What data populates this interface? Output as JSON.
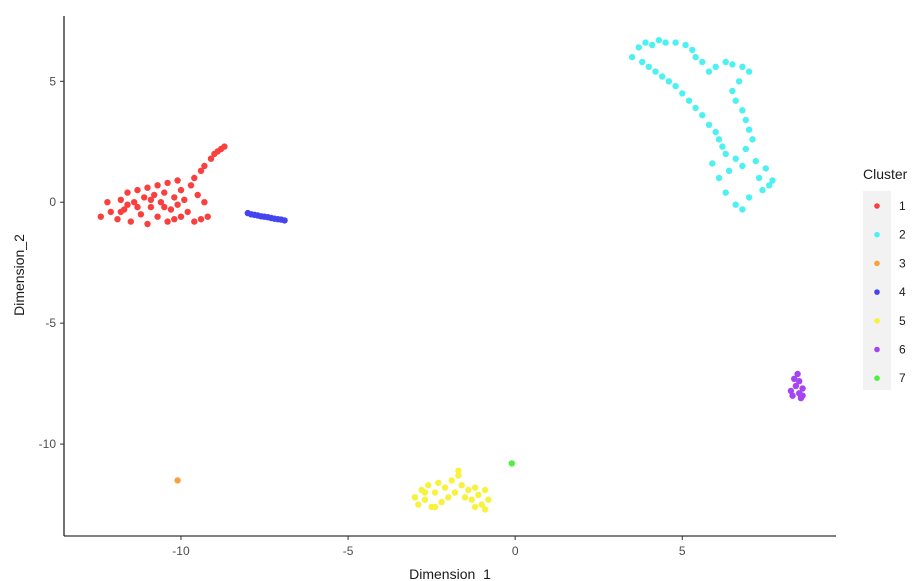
{
  "chart_data": {
    "type": "scatter",
    "xlabel": "Dimension_1",
    "ylabel": "Dimension_2",
    "xlim": [
      -13.5,
      9.6
    ],
    "ylim": [
      -13.8,
      7.7
    ],
    "x_ticks": [
      -10,
      -5,
      0,
      5
    ],
    "y_ticks": [
      -10,
      -5,
      0,
      5
    ],
    "x_tick_labels": [
      "-10",
      "-5",
      "0",
      "5"
    ],
    "y_tick_labels": [
      "-10",
      "-5",
      "0",
      "5"
    ],
    "grid": false,
    "legend_title": "Cluster",
    "legend_position": "right",
    "series": [
      {
        "name": "1",
        "color": "#F8413E",
        "points": [
          [
            -12.4,
            -0.6
          ],
          [
            -12.1,
            -0.4
          ],
          [
            -12.2,
            0.0
          ],
          [
            -11.9,
            -0.7
          ],
          [
            -11.7,
            -0.3
          ],
          [
            -11.8,
            0.1
          ],
          [
            -11.6,
            0.4
          ],
          [
            -11.5,
            -0.8
          ],
          [
            -11.4,
            0.0
          ],
          [
            -11.3,
            0.5
          ],
          [
            -11.2,
            -0.5
          ],
          [
            -11.1,
            0.2
          ],
          [
            -11.0,
            0.6
          ],
          [
            -11.0,
            -0.9
          ],
          [
            -10.9,
            -0.2
          ],
          [
            -10.8,
            0.3
          ],
          [
            -10.7,
            0.7
          ],
          [
            -10.7,
            -0.6
          ],
          [
            -10.6,
            0.0
          ],
          [
            -10.5,
            0.4
          ],
          [
            -10.4,
            -0.8
          ],
          [
            -10.4,
            0.8
          ],
          [
            -10.3,
            -0.3
          ],
          [
            -10.2,
            0.2
          ],
          [
            -10.1,
            0.9
          ],
          [
            -10.0,
            -0.6
          ],
          [
            -10.0,
            0.5
          ],
          [
            -9.9,
            0.1
          ],
          [
            -9.8,
            -0.4
          ],
          [
            -9.7,
            0.7
          ],
          [
            -9.6,
            1.0
          ],
          [
            -9.5,
            0.3
          ],
          [
            -9.4,
            1.3
          ],
          [
            -9.3,
            1.5
          ],
          [
            -9.3,
            0.0
          ],
          [
            -9.1,
            1.8
          ],
          [
            -9.0,
            2.0
          ],
          [
            -8.9,
            2.1
          ],
          [
            -8.8,
            2.2
          ],
          [
            -8.7,
            2.3
          ],
          [
            -10.2,
            -0.7
          ],
          [
            -9.6,
            -0.8
          ],
          [
            -9.4,
            -0.7
          ],
          [
            -9.2,
            -0.6
          ],
          [
            -11.6,
            -0.1
          ],
          [
            -11.3,
            -0.2
          ],
          [
            -10.9,
            0.1
          ],
          [
            -10.5,
            -0.2
          ],
          [
            -10.1,
            -0.1
          ],
          [
            -11.8,
            -0.4
          ]
        ]
      },
      {
        "name": "2",
        "color": "#4EF1F1",
        "points": [
          [
            3.5,
            6.0
          ],
          [
            3.7,
            6.4
          ],
          [
            3.9,
            6.6
          ],
          [
            4.1,
            6.5
          ],
          [
            4.3,
            6.7
          ],
          [
            4.5,
            6.6
          ],
          [
            4.8,
            6.6
          ],
          [
            5.1,
            6.5
          ],
          [
            5.3,
            6.3
          ],
          [
            5.4,
            6.0
          ],
          [
            3.8,
            5.8
          ],
          [
            4.0,
            5.6
          ],
          [
            4.2,
            5.4
          ],
          [
            4.4,
            5.2
          ],
          [
            4.6,
            5.0
          ],
          [
            4.8,
            4.8
          ],
          [
            5.0,
            4.5
          ],
          [
            5.2,
            4.2
          ],
          [
            5.4,
            3.9
          ],
          [
            5.6,
            3.6
          ],
          [
            5.8,
            3.2
          ],
          [
            6.0,
            2.9
          ],
          [
            6.1,
            2.6
          ],
          [
            6.2,
            2.3
          ],
          [
            6.3,
            2.0
          ],
          [
            5.6,
            5.8
          ],
          [
            5.8,
            5.4
          ],
          [
            6.0,
            5.6
          ],
          [
            6.3,
            5.8
          ],
          [
            6.5,
            5.7
          ],
          [
            6.8,
            5.6
          ],
          [
            7.0,
            5.4
          ],
          [
            6.7,
            5.0
          ],
          [
            6.5,
            4.6
          ],
          [
            6.6,
            4.2
          ],
          [
            6.8,
            3.8
          ],
          [
            6.9,
            3.4
          ],
          [
            7.0,
            3.0
          ],
          [
            7.1,
            2.6
          ],
          [
            6.9,
            2.2
          ],
          [
            6.6,
            1.8
          ],
          [
            6.8,
            1.5
          ],
          [
            7.2,
            1.7
          ],
          [
            7.5,
            1.4
          ],
          [
            7.7,
            0.9
          ],
          [
            7.4,
            0.5
          ],
          [
            7.0,
            0.2
          ],
          [
            6.6,
            -0.1
          ],
          [
            6.3,
            0.4
          ],
          [
            6.1,
            1.0
          ],
          [
            6.4,
            1.3
          ],
          [
            5.9,
            1.6
          ],
          [
            7.3,
            1.0
          ],
          [
            7.6,
            0.7
          ],
          [
            6.8,
            -0.3
          ]
        ]
      },
      {
        "name": "3",
        "color": "#F8A13E",
        "points": [
          [
            -10.1,
            -11.5
          ]
        ]
      },
      {
        "name": "4",
        "color": "#4544F1",
        "points": [
          [
            -8.0,
            -0.45
          ],
          [
            -7.9,
            -0.5
          ],
          [
            -7.8,
            -0.52
          ],
          [
            -7.7,
            -0.55
          ],
          [
            -7.6,
            -0.58
          ],
          [
            -7.5,
            -0.6
          ],
          [
            -7.4,
            -0.62
          ],
          [
            -7.3,
            -0.65
          ],
          [
            -7.2,
            -0.68
          ],
          [
            -7.1,
            -0.7
          ],
          [
            -7.0,
            -0.72
          ],
          [
            -6.9,
            -0.75
          ]
        ]
      },
      {
        "name": "5",
        "color": "#F8F13E",
        "points": [
          [
            -3.0,
            -12.2
          ],
          [
            -2.9,
            -12.5
          ],
          [
            -2.8,
            -11.9
          ],
          [
            -2.7,
            -12.3
          ],
          [
            -2.6,
            -11.7
          ],
          [
            -2.5,
            -12.6
          ],
          [
            -2.4,
            -12.0
          ],
          [
            -2.3,
            -11.6
          ],
          [
            -2.2,
            -12.4
          ],
          [
            -2.1,
            -11.8
          ],
          [
            -2.0,
            -12.2
          ],
          [
            -1.9,
            -11.5
          ],
          [
            -1.8,
            -12.0
          ],
          [
            -1.7,
            -11.3
          ],
          [
            -1.6,
            -11.7
          ],
          [
            -1.5,
            -12.2
          ],
          [
            -1.4,
            -11.9
          ],
          [
            -1.3,
            -12.3
          ],
          [
            -1.2,
            -11.8
          ],
          [
            -1.1,
            -12.1
          ],
          [
            -1.0,
            -12.5
          ],
          [
            -0.9,
            -11.9
          ],
          [
            -0.8,
            -12.3
          ],
          [
            -0.9,
            -12.7
          ],
          [
            -1.2,
            -12.6
          ],
          [
            -1.7,
            -11.1
          ],
          [
            -2.4,
            -12.6
          ],
          [
            -2.7,
            -12.0
          ]
        ]
      },
      {
        "name": "6",
        "color": "#A744F1",
        "points": [
          [
            8.25,
            -7.8
          ],
          [
            8.3,
            -8.0
          ],
          [
            8.35,
            -7.3
          ],
          [
            8.4,
            -7.6
          ],
          [
            8.45,
            -7.1
          ],
          [
            8.5,
            -7.9
          ],
          [
            8.55,
            -8.1
          ],
          [
            8.6,
            -7.7
          ],
          [
            8.6,
            -8.0
          ],
          [
            8.5,
            -7.4
          ]
        ]
      },
      {
        "name": "7",
        "color": "#4EF13E",
        "points": [
          [
            -0.1,
            -10.8
          ]
        ]
      }
    ]
  }
}
